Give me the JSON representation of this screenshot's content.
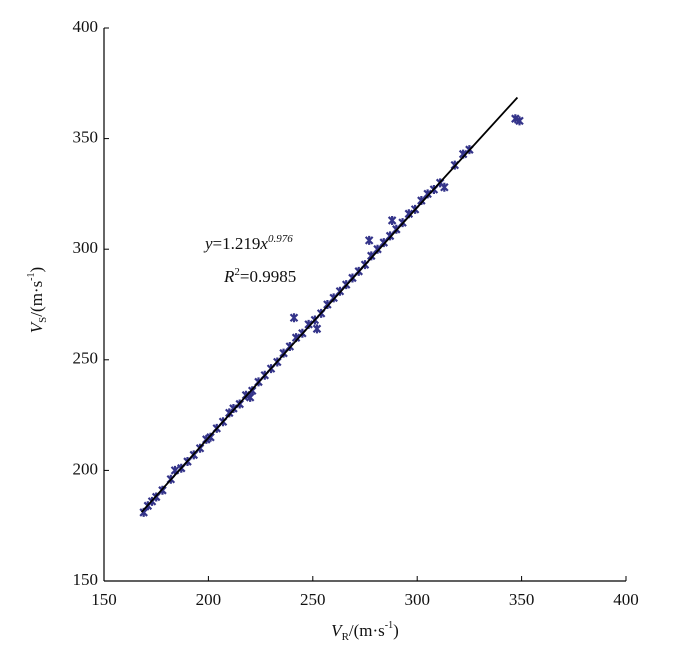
{
  "chart_data": {
    "type": "scatter",
    "xlabel": [
      "V",
      "R",
      "/(m·s",
      "-1",
      ")"
    ],
    "ylabel": [
      "V",
      "S",
      "/(m·s",
      "-1",
      ")"
    ],
    "annotations": [
      [
        "y",
        "=1.219",
        "x",
        "0.976"
      ],
      [
        "R",
        "2",
        "=0.9985"
      ]
    ],
    "xlim": [
      150,
      400
    ],
    "xticks": [
      150,
      200,
      250,
      300,
      350,
      400
    ],
    "ylim": [
      150,
      400
    ],
    "yticks": [
      150,
      200,
      250,
      300,
      350,
      400
    ],
    "series": [
      {
        "color": "#34348a",
        "x": [
          169,
          171,
          173,
          175,
          178,
          182,
          184,
          187,
          190,
          193,
          196,
          199,
          201,
          204,
          207,
          210,
          212,
          215,
          218,
          221,
          224,
          227,
          230,
          233,
          236,
          239,
          242,
          245,
          248,
          251,
          254,
          257,
          260,
          263,
          266,
          269,
          272,
          275,
          278,
          281,
          284,
          287,
          290,
          293,
          296,
          299,
          302,
          305,
          308,
          311,
          313,
          318,
          322,
          325,
          347,
          349,
          220,
          288,
          241,
          252,
          277
        ],
        "values": [
          181,
          184,
          186,
          188,
          191,
          196,
          200,
          201,
          204,
          207,
          210,
          214,
          215,
          219,
          222,
          226,
          228,
          230,
          234,
          236,
          240,
          243,
          246,
          249,
          253,
          256,
          260,
          262,
          266,
          268,
          271,
          275,
          278,
          281,
          284,
          287,
          290,
          293,
          297,
          300,
          303,
          306,
          309,
          312,
          316,
          318,
          322,
          325,
          327,
          330,
          328,
          338,
          343,
          345,
          359,
          358,
          233,
          313,
          269,
          264,
          304
        ]
      }
    ],
    "fit_line": {
      "color": "#000000",
      "x": [
        168,
        200,
        250,
        300,
        348
      ],
      "values": [
        181.1,
        214.7,
        267.0,
        318.9,
        368.6
      ]
    }
  }
}
